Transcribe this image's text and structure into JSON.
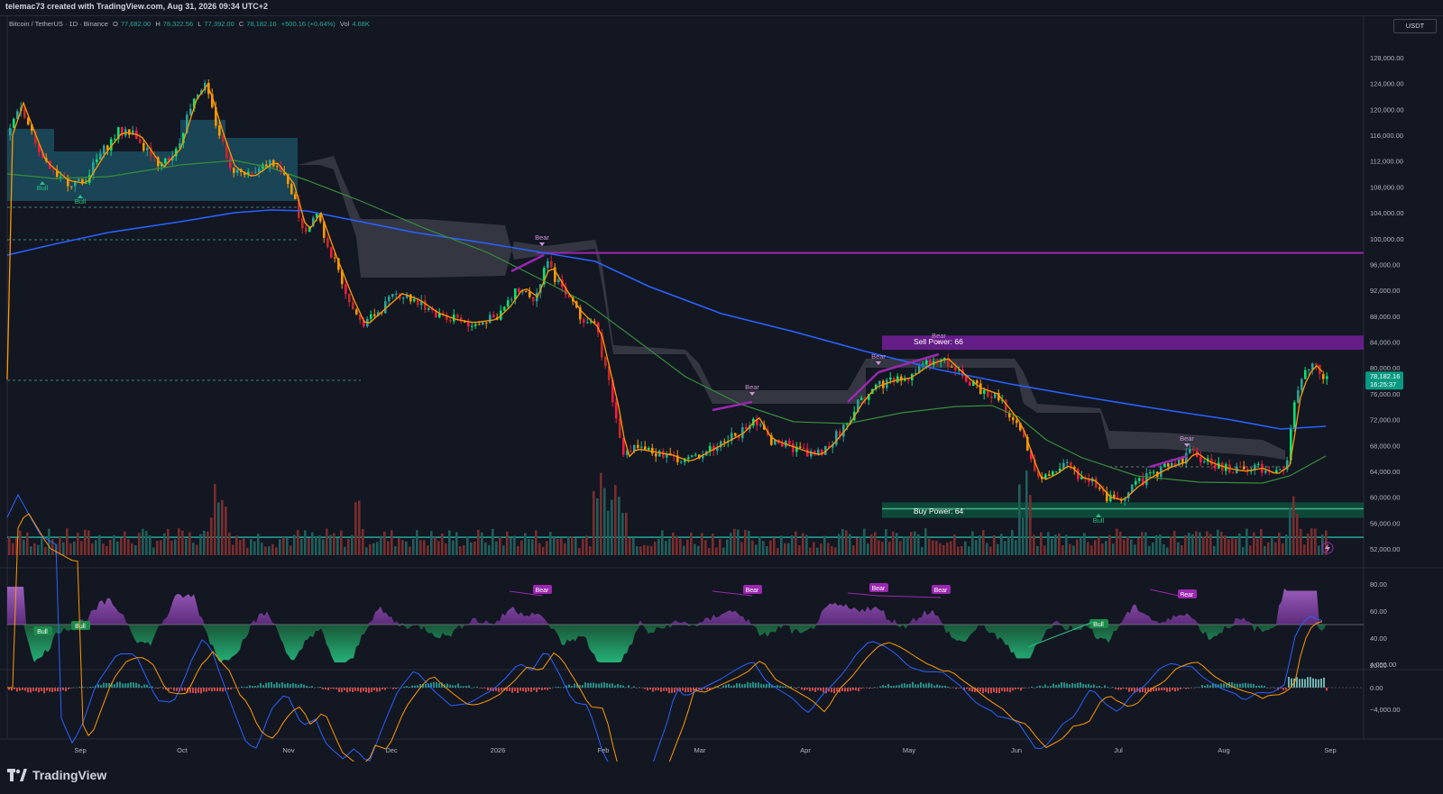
{
  "header": {
    "credit": "telemac73 created with TradingView.com, Aug 31, 2026 09:34 UTC+2",
    "symbol_line": "Bitcoin / TetherUS · 1D · Binance",
    "ohlc": {
      "open_label": "O",
      "open": "77,682.00",
      "high_label": "H",
      "high": "78,322.56",
      "low_label": "L",
      "low": "77,392.00",
      "close_label": "C",
      "close": "78,182.16",
      "change": "+500.16 (+0.64%)",
      "vol_label": "Vol",
      "vol": "4.68K"
    },
    "currency_button": "USDT"
  },
  "price_axis": {
    "labels": [
      "128,000.00",
      "124,000.00",
      "120,000.00",
      "116,000.00",
      "112,000.00",
      "108,000.00",
      "104,000.00",
      "100,000.00",
      "96,000.00",
      "92,000.00",
      "88,000.00",
      "84,000.00",
      "80,000.00",
      "76,000.00",
      "72,000.00",
      "68,000.00",
      "64,000.00",
      "60,000.00",
      "56,000.00",
      "52,000.00"
    ],
    "current_price": "78,182.16",
    "countdown": "16:25:37"
  },
  "rsi_axis": {
    "labels": [
      "80.00",
      "60.00",
      "40.00",
      "20.00"
    ]
  },
  "macd_axis": {
    "labels": [
      "4,000.00",
      "0.00",
      "−4,000.00"
    ]
  },
  "time_axis": {
    "labels": [
      "Sep",
      "Oct",
      "Nov",
      "Dec",
      "2026",
      "Feb",
      "Mar",
      "Apr",
      "May",
      "Jun",
      "Jul",
      "Aug",
      "Sep"
    ]
  },
  "annotations": {
    "sell_power": "Sell Power: 66",
    "buy_power": "Buy Power: 64",
    "bear": "Bear",
    "bull": "Bull"
  },
  "footer": {
    "brand": "TradingView"
  },
  "colors": {
    "background": "#131722",
    "up": "#26a69a",
    "down": "#ef5350",
    "purple": "#9c27b0",
    "ema_blue": "#2962ff",
    "ema_green": "#2e7d32",
    "ema_orange": "#ff9800",
    "current_price_bg": "#089981"
  },
  "chart_data": {
    "type": "candlestick",
    "description_series": {
      "x": [
        "Aug",
        "Sep",
        "Oct",
        "Nov",
        "Dec",
        "Jan",
        "Feb",
        "Mar",
        "Apr",
        "May",
        "Jun",
        "Jul",
        "Aug",
        "Sep"
      ],
      "close_approx": [
        113000,
        110000,
        122000,
        104000,
        92000,
        89000,
        78000,
        70000,
        74000,
        80000,
        68000,
        62000,
        64000,
        78182
      ]
    },
    "ylim": [
      52000,
      130000
    ],
    "levels": {
      "purple_resistance": 98000,
      "sell_zone": [
        83000,
        85000
      ],
      "buy_zone": [
        58000,
        59500
      ]
    }
  }
}
